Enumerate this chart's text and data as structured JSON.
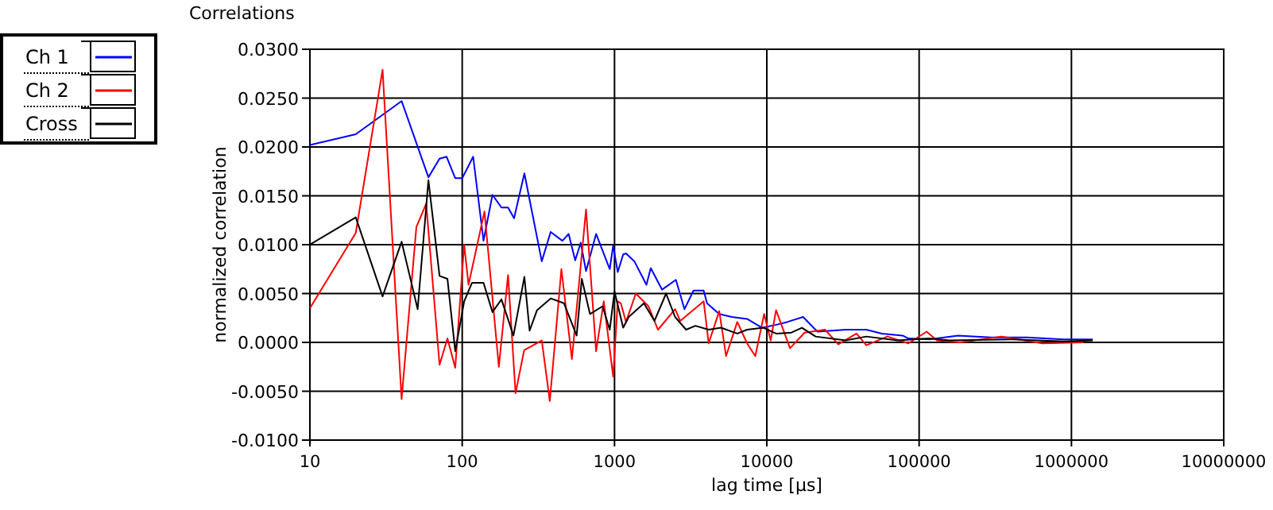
{
  "chart_data": {
    "type": "line",
    "title": "Correlations",
    "xlabel": "lag time [µs]",
    "ylabel": "normalized correlation",
    "log": "x",
    "grid": true,
    "legend": "top left",
    "line_style": "solid",
    "marker": "none",
    "xlim": [
      10,
      10000000
    ],
    "xticks": [
      10,
      100,
      1000,
      10000,
      100000,
      1000000,
      10000000
    ],
    "ylim": [
      -0.01,
      0.03
    ],
    "yticks": [
      {
        "value": -0.01,
        "label": "-0.0100"
      },
      {
        "value": -0.005,
        "label": "-0.0050"
      },
      {
        "value": 0,
        "label": "0.0000"
      },
      {
        "value": 0.005,
        "label": "0.0050"
      },
      {
        "value": 0.01,
        "label": "0.0100"
      },
      {
        "value": 0.015,
        "label": "0.0150"
      },
      {
        "value": 0.02,
        "label": "0.0200"
      },
      {
        "value": 0.025,
        "label": "0.0250"
      },
      {
        "value": 0.03,
        "label": "0.0300"
      }
    ],
    "series": [
      {
        "name": "Ch 1",
        "color": "#0000ff",
        "x": [
          10,
          20,
          40,
          60,
          71,
          79,
          90,
          100,
          118,
          138,
          158,
          181,
          200,
          219,
          256,
          333,
          381,
          455,
          500,
          552,
          600,
          650,
          757,
          930,
          980,
          1050,
          1140,
          1190,
          1350,
          1620,
          1730,
          2050,
          2530,
          2880,
          3300,
          3850,
          4050,
          4870,
          5900,
          7420,
          9300,
          11500,
          13700,
          17300,
          21500,
          33000,
          45000,
          57000,
          78000,
          85000,
          116000,
          180000,
          297000,
          510000,
          890000,
          1380000
        ],
        "values": [
          0.0202,
          0.0213,
          0.0247,
          0.0169,
          0.0188,
          0.019,
          0.0168,
          0.0168,
          0.019,
          0.0104,
          0.0151,
          0.0138,
          0.0138,
          0.0127,
          0.0173,
          0.0083,
          0.0113,
          0.0104,
          0.0111,
          0.0084,
          0.0102,
          0.0073,
          0.0111,
          0.0075,
          0.0099,
          0.0072,
          0.009,
          0.0091,
          0.0083,
          0.0059,
          0.0076,
          0.0054,
          0.0064,
          0.0034,
          0.0053,
          0.0053,
          0.004,
          0.0029,
          0.0026,
          0.0024,
          0.0015,
          0.0018,
          0.0021,
          0.0026,
          0.0011,
          0.0013,
          0.0013,
          0.0009,
          0.0007,
          0.0004,
          0.0003,
          0.0007,
          0.0005,
          0.0005,
          0.0003,
          0.0003
        ]
      },
      {
        "name": "Ch 2",
        "color": "#ff0000",
        "x": [
          10,
          20,
          30,
          40,
          50,
          58,
          71,
          80,
          90,
          103,
          110,
          133,
          140,
          174,
          200,
          224,
          255,
          333,
          376,
          448,
          525,
          650,
          757,
          850,
          980,
          1050,
          1100,
          1190,
          1380,
          1670,
          1930,
          2500,
          2700,
          3850,
          4150,
          4870,
          5400,
          6400,
          7420,
          8400,
          9600,
          10600,
          11500,
          14200,
          17700,
          24100,
          29500,
          38800,
          45000,
          62000,
          85000,
          112000,
          131000,
          186000,
          347000,
          645000,
          1200000
        ],
        "values": [
          0.0035,
          0.0112,
          0.0279,
          -0.0058,
          0.0118,
          0.0142,
          -0.0023,
          0.0004,
          -0.0026,
          0.01,
          0.0059,
          0.0118,
          0.0134,
          -0.0025,
          0.0069,
          -0.0052,
          -0.0008,
          0.0002,
          -0.006,
          0.0075,
          -0.0017,
          0.0136,
          -0.0009,
          0.0042,
          -0.0035,
          0.0042,
          0.004,
          0.0021,
          0.005,
          0.0037,
          0.0013,
          0.0034,
          0.0022,
          0.0042,
          -0.0001,
          0.0032,
          -0.0014,
          0.0021,
          -0.0001,
          -0.0014,
          0.0029,
          0.0002,
          0.0033,
          -0.0006,
          0.001,
          0.0013,
          -0.0002,
          0.0009,
          -0.0003,
          0.0006,
          -0.0001,
          0.0011,
          0.0002,
          0,
          0.0006,
          -0.0001,
          0
        ]
      },
      {
        "name": "Cross",
        "color": "#000000",
        "x": [
          10,
          20,
          30,
          40,
          51,
          60,
          71,
          80,
          90,
          103,
          116,
          138,
          158,
          181,
          217,
          256,
          277,
          310,
          381,
          466,
          564,
          610,
          690,
          835,
          930,
          1000,
          1140,
          1240,
          1560,
          1830,
          2180,
          2500,
          2950,
          3400,
          4150,
          5000,
          6400,
          7420,
          9500,
          11500,
          14500,
          17000,
          20900,
          33000,
          45000,
          72000,
          116000,
          158000,
          408000,
          890000,
          1380000
        ],
        "values": [
          0.01,
          0.0128,
          0.0047,
          0.0103,
          0.0034,
          0.0166,
          0.0068,
          0.0065,
          -0.0009,
          0.0042,
          0.0061,
          0.0061,
          0.0031,
          0.0044,
          0.0007,
          0.0067,
          0.0012,
          0.0033,
          0.0045,
          0.004,
          0.0007,
          0.0065,
          0.0029,
          0.0037,
          0.0013,
          0.0052,
          0.0015,
          0.0026,
          0.004,
          0.0022,
          0.005,
          0.0026,
          0.0013,
          0.0017,
          0.0013,
          0.0015,
          0.0009,
          0.0013,
          0.0015,
          0.0009,
          0.001,
          0.0015,
          0.0006,
          0.0002,
          0.0006,
          0.0002,
          0.0004,
          0.0002,
          0.0003,
          0.0001,
          0.0002
        ]
      }
    ]
  }
}
